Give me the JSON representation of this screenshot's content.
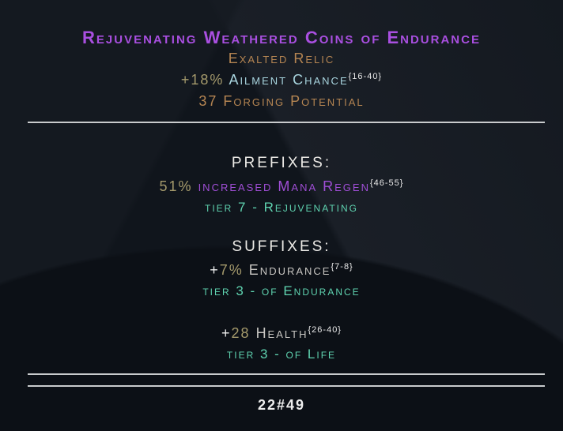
{
  "item": {
    "name": "Rejuvenating Weathered Coins of Endurance",
    "base": "Exalted Relic",
    "implicit": {
      "value": "+18%",
      "stat": "Ailment Chance",
      "range": "{16-40}"
    },
    "forging": "37 Forging Potential"
  },
  "prefixes": {
    "header": "PREFIXES:",
    "mods": [
      {
        "value": "51%",
        "stat": "increased Mana Regen",
        "range": "{46-55}",
        "tier": "tier 7 - Rejuvenating"
      }
    ]
  },
  "suffixes": {
    "header": "SUFFIXES:",
    "mods": [
      {
        "sign": "+",
        "value": "7%",
        "stat": "Endurance",
        "range": "{7-8}",
        "tier": "tier 3 - of Endurance"
      },
      {
        "sign": "+",
        "value": "28",
        "stat": "Health",
        "range": "{26-40}",
        "tier": "tier 3 - of Life"
      }
    ]
  },
  "footer": {
    "id": "22#49"
  },
  "colors": {
    "name": "#a94fe0",
    "base": "#b58552",
    "tier": "#5fd3b0",
    "background": "#10151c"
  }
}
